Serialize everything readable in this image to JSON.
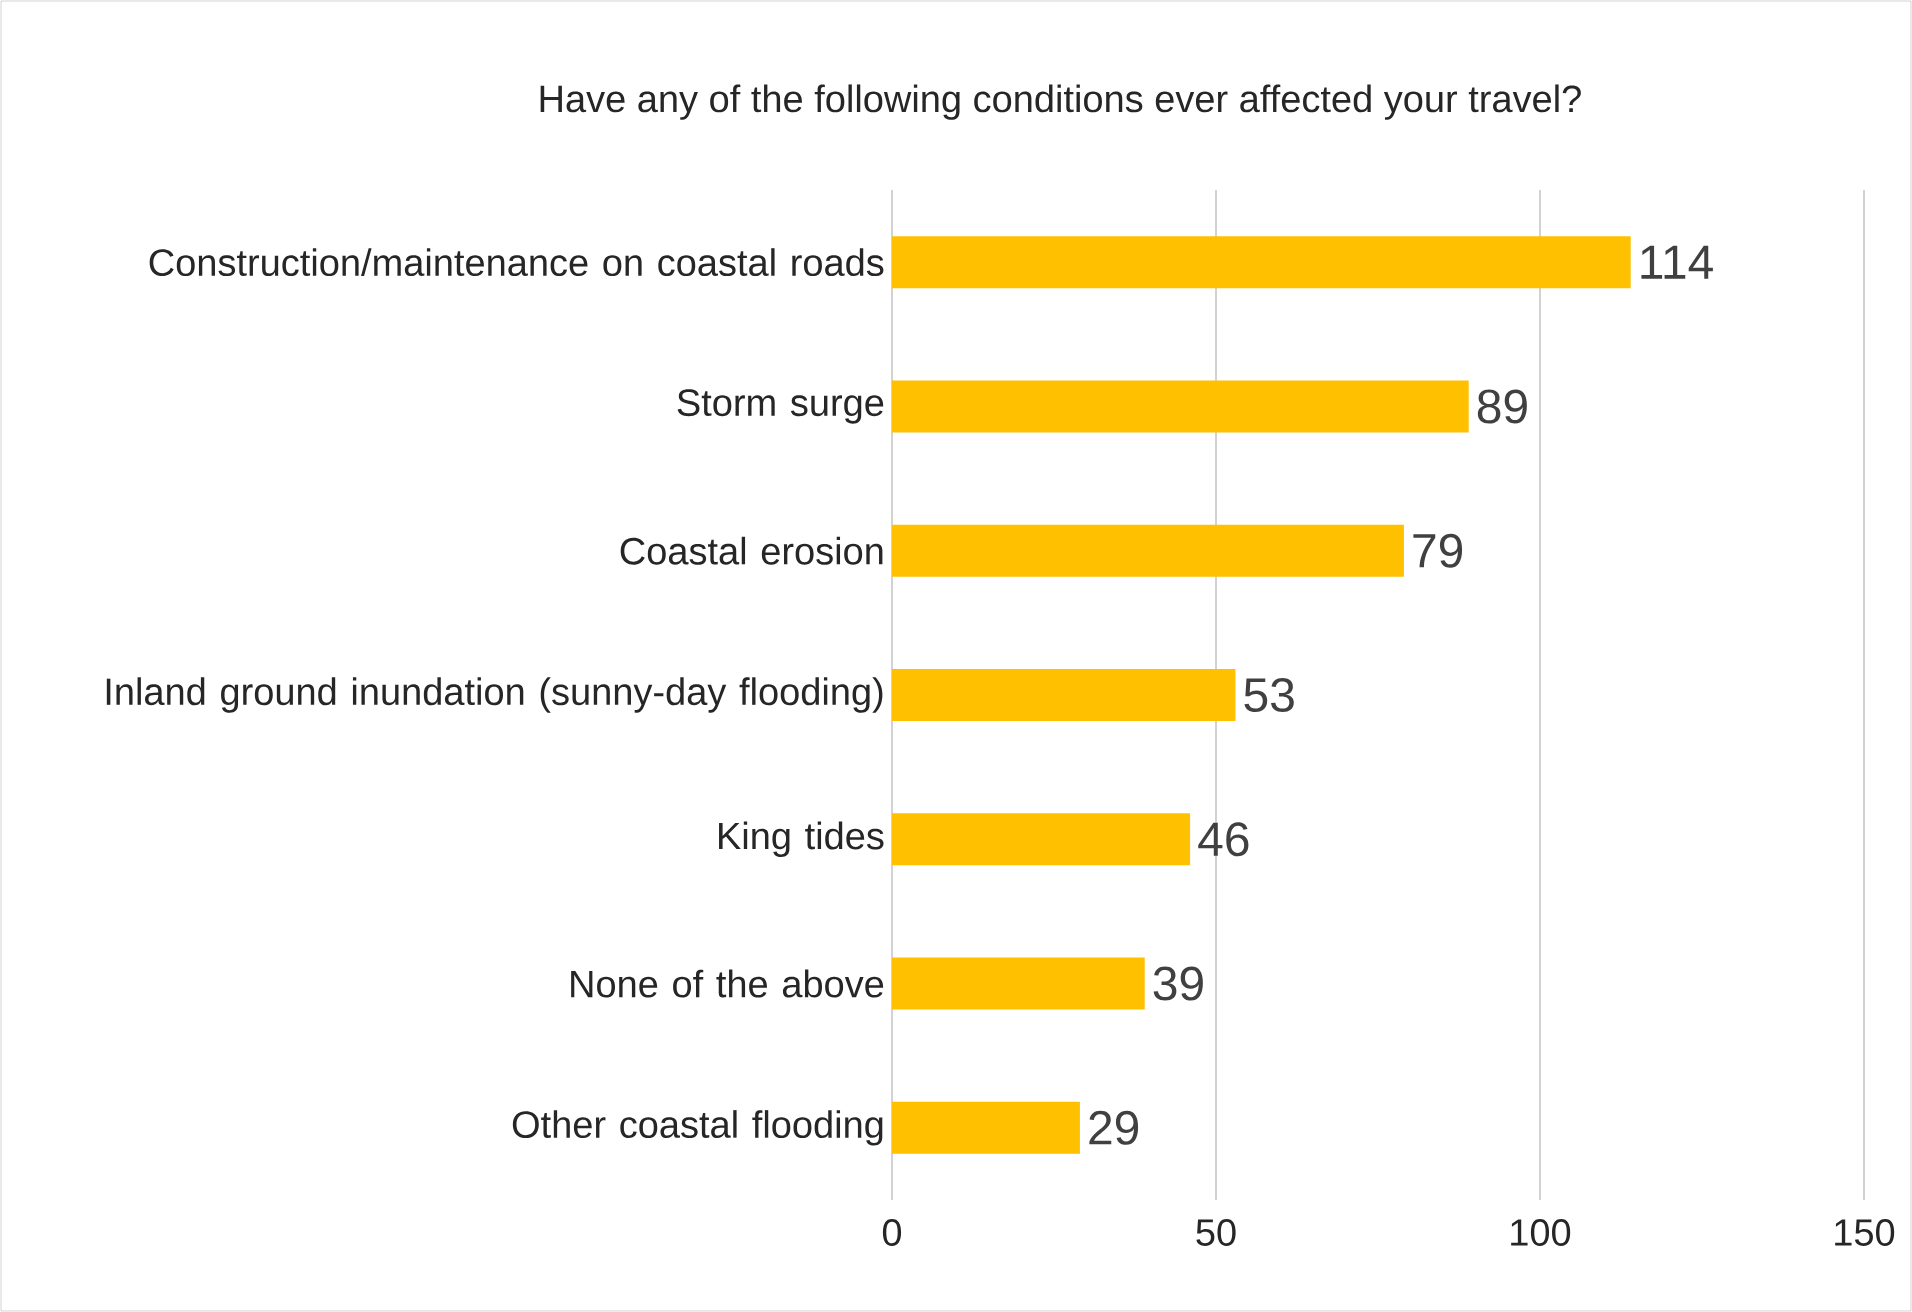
{
  "chart_data": {
    "type": "bar",
    "orientation": "horizontal",
    "title": "Have any of the following conditions ever affected your travel?",
    "categories": [
      "Construction/maintenance on coastal roads",
      "Storm surge",
      "Coastal erosion",
      "Inland ground inundation (sunny-day flooding)",
      "King tides",
      "None of the above",
      "Other coastal flooding"
    ],
    "values": [
      114,
      89,
      79,
      53,
      46,
      39,
      29
    ],
    "color": "#ffc000",
    "xlim": [
      0,
      150
    ],
    "xticks": [
      0,
      50,
      100,
      150
    ],
    "grid": "x",
    "data_labels": true
  }
}
